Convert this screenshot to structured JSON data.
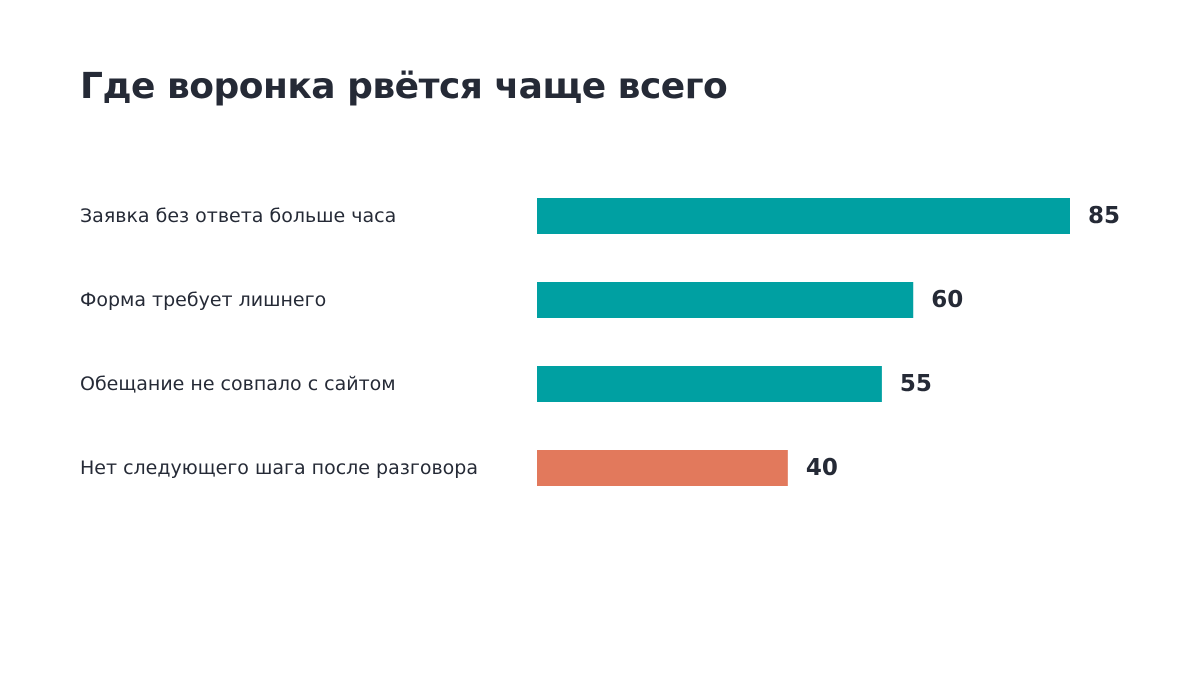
{
  "chart_data": {
    "type": "bar",
    "orientation": "horizontal",
    "title": "Где воронка рвётся чаще всего",
    "categories": [
      "Заявка без ответа больше часа",
      "Форма требует лишнего",
      "Обещание не совпало с сайтом",
      "Нет следующего шага после разговора"
    ],
    "values": [
      85,
      60,
      55,
      40
    ],
    "bar_colors": [
      "#00a0a2",
      "#00a0a2",
      "#00a0a2",
      "#e2795c"
    ],
    "value_color": "#252a36",
    "label_color": "#252a36",
    "xlim": [
      0,
      85
    ],
    "grid": false,
    "data_labels": true
  }
}
